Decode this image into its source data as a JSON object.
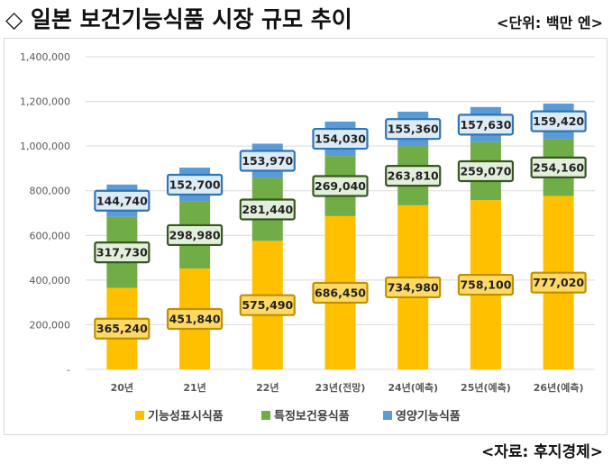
{
  "header": {
    "title": "◇ 일본 보건기능식품 시장 규모 추이",
    "unit": "<단위: 백만 엔>"
  },
  "footer": {
    "source": "<자료: 후지경제>"
  },
  "colors": {
    "series1": "#FFC000",
    "series2": "#70AD47",
    "series3": "#5B9BD5",
    "label_fill1": "#FFD966",
    "label_fill2": "#E2EFDA",
    "label_fill3": "#DDEBF7",
    "label_border1": "#BF9000",
    "label_border2": "#375623",
    "label_border3": "#2E75B6",
    "grid": "#D9D9D9"
  },
  "chart_data": {
    "type": "bar",
    "stacked": true,
    "categories": [
      "20년",
      "21년",
      "22년",
      "23년(전망)",
      "24년(예측)",
      "25년(예측)",
      "26년(예측)"
    ],
    "series": [
      {
        "name": "기능성표시식품",
        "values": [
          365240,
          451840,
          575490,
          686450,
          734980,
          758100,
          777020
        ]
      },
      {
        "name": "특정보건용식품",
        "values": [
          317730,
          298980,
          281440,
          269040,
          263810,
          259070,
          254160
        ]
      },
      {
        "name": "영양기능식품",
        "values": [
          144740,
          152700,
          153970,
          154030,
          155360,
          157630,
          159420
        ]
      }
    ],
    "data_labels": [
      [
        "365,240",
        "451,840",
        "575,490",
        "686,450",
        "734,980",
        "758,100",
        "777,020"
      ],
      [
        "317,730",
        "298,980",
        "281,440",
        "269,040",
        "263,810",
        "259,070",
        "254,160"
      ],
      [
        "144,740",
        "152,700",
        "153,970",
        "154,030",
        "155,360",
        "157,630",
        "159,420"
      ]
    ],
    "y_ticks": [
      "-",
      "200,000",
      "400,000",
      "600,000",
      "800,000",
      "1,000,000",
      "1,200,000",
      "1,400,000"
    ],
    "ylim": [
      0,
      1400000
    ],
    "grid": true,
    "legend_position": "bottom"
  }
}
